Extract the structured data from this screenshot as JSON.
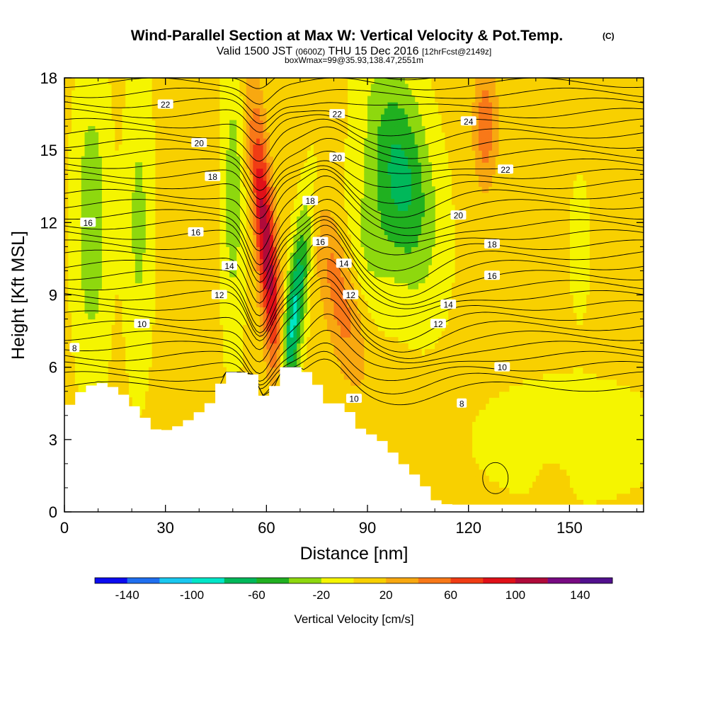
{
  "title": {
    "main": "Wind-Parallel Section at Max W: Vertical Velocity & Pot.Temp.",
    "main_mark": "(C)",
    "line2_a": "Valid 1500 JST",
    "line2_b": "(0600Z)",
    "line2_c": "THU 15 Dec 2016",
    "line2_d": "[12hrFcst@2149z]",
    "line3": "boxWmax=99@35.93,138.47,2551m"
  },
  "chart_data": {
    "type": "heatmap",
    "xlabel": "Distance [nm]",
    "ylabel": "Height [Kft MSL]",
    "xlim": [
      0,
      172
    ],
    "ylim": [
      0,
      18
    ],
    "x_ticks": [
      0,
      30,
      60,
      90,
      120,
      150
    ],
    "y_ticks": [
      0,
      3,
      6,
      9,
      12,
      15,
      18
    ],
    "colorbar": {
      "label": "Vertical Velocity [cm/s]",
      "levels": [
        -160,
        -140,
        -120,
        -100,
        -80,
        -60,
        -40,
        -20,
        0,
        20,
        40,
        60,
        80,
        100,
        120,
        140,
        160
      ],
      "tick_labels": [
        -140,
        -100,
        -60,
        -20,
        20,
        60,
        100,
        140
      ],
      "colors": [
        "#0b0bf0",
        "#1f6ff0",
        "#19c8f0",
        "#00e6c8",
        "#00b85a",
        "#20b020",
        "#8ed80e",
        "#f5f500",
        "#f8d000",
        "#f8a810",
        "#f87818",
        "#f03c14",
        "#e01018",
        "#b00a3a",
        "#780a82",
        "#52108e"
      ]
    },
    "terrain_kft": [
      [
        0,
        4.2
      ],
      [
        2,
        4.5
      ],
      [
        5,
        5.0
      ],
      [
        10,
        5.4
      ],
      [
        16,
        5.1
      ],
      [
        20,
        4.5
      ],
      [
        24,
        3.9
      ],
      [
        28,
        3.3
      ],
      [
        33,
        3.5
      ],
      [
        38,
        3.9
      ],
      [
        44,
        4.6
      ],
      [
        48,
        5.8
      ],
      [
        52,
        5.8
      ],
      [
        56,
        5.7
      ],
      [
        59,
        4.8
      ],
      [
        62,
        5.1
      ],
      [
        65,
        6.0
      ],
      [
        70,
        6.0
      ],
      [
        74,
        5.6
      ],
      [
        78,
        4.5
      ],
      [
        84,
        4.5
      ],
      [
        86,
        3.6
      ],
      [
        90,
        3.3
      ],
      [
        94,
        3.0
      ],
      [
        98,
        2.4
      ],
      [
        102,
        1.8
      ],
      [
        106,
        1.3
      ],
      [
        110,
        0.5
      ],
      [
        114,
        0.3
      ],
      [
        172,
        0.3
      ]
    ],
    "w_features": [
      {
        "x": 60,
        "y": 11,
        "value": 110
      },
      {
        "x": 68,
        "y": 8,
        "value": -90
      },
      {
        "x": 82,
        "y": 9,
        "value": 50
      },
      {
        "x": 100,
        "y": 14,
        "value": -70
      },
      {
        "x": 8,
        "y": 12,
        "value": -40
      },
      {
        "x": 125,
        "y": 16,
        "value": 50
      },
      {
        "x": 150,
        "y": 3,
        "value": -15
      }
    ],
    "theta_levels": [
      8,
      10,
      12,
      14,
      16,
      18,
      20,
      22,
      24
    ],
    "theta_labels": [
      {
        "value": 22,
        "x": 30,
        "y": 16.9
      },
      {
        "value": 20,
        "x": 40,
        "y": 15.3
      },
      {
        "value": 18,
        "x": 44,
        "y": 13.9
      },
      {
        "value": 16,
        "x": 7,
        "y": 12.0
      },
      {
        "value": 16,
        "x": 39,
        "y": 11.6
      },
      {
        "value": 14,
        "x": 49,
        "y": 10.2
      },
      {
        "value": 12,
        "x": 46,
        "y": 9.0
      },
      {
        "value": 10,
        "x": 23,
        "y": 7.8
      },
      {
        "value": 8,
        "x": 3,
        "y": 6.8
      },
      {
        "value": 22,
        "x": 81,
        "y": 16.5
      },
      {
        "value": 20,
        "x": 81,
        "y": 14.7
      },
      {
        "value": 18,
        "x": 73,
        "y": 12.9
      },
      {
        "value": 16,
        "x": 76,
        "y": 11.2
      },
      {
        "value": 14,
        "x": 83,
        "y": 10.3
      },
      {
        "value": 12,
        "x": 85,
        "y": 9.0
      },
      {
        "value": 10,
        "x": 86,
        "y": 4.7
      },
      {
        "value": 24,
        "x": 120,
        "y": 16.2
      },
      {
        "value": 22,
        "x": 131,
        "y": 14.2
      },
      {
        "value": 20,
        "x": 117,
        "y": 12.3
      },
      {
        "value": 18,
        "x": 127,
        "y": 11.1
      },
      {
        "value": 16,
        "x": 127,
        "y": 9.8
      },
      {
        "value": 14,
        "x": 114,
        "y": 8.6
      },
      {
        "value": 12,
        "x": 111,
        "y": 7.8
      },
      {
        "value": 10,
        "x": 130,
        "y": 6.0
      },
      {
        "value": 8,
        "x": 118,
        "y": 4.5
      }
    ]
  }
}
